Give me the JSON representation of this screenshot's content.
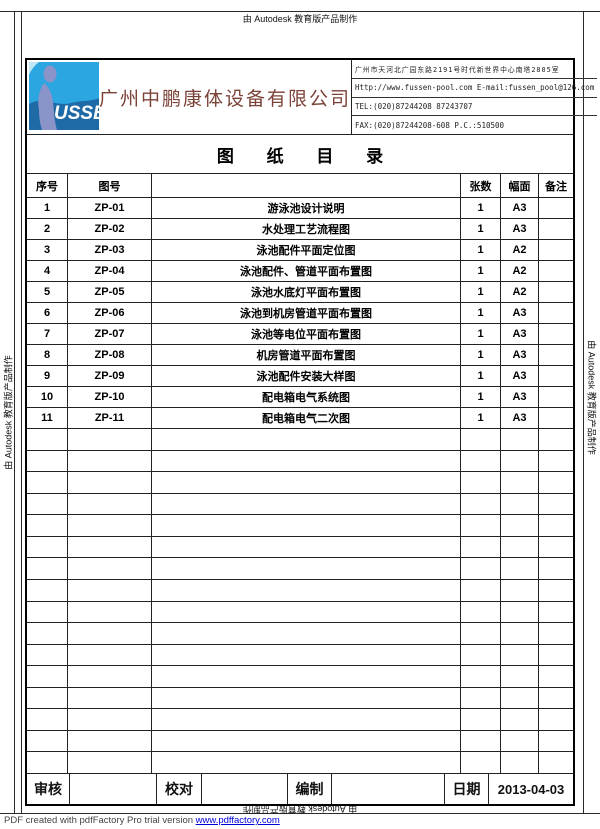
{
  "watermarks": {
    "top": "由 Autodesk 教育版产品制作",
    "left": "由 Autodesk 教育版产品制作",
    "right": "由 Autodesk 教育版产品制作",
    "bottom": "由 Autodesk 教育版产品制作"
  },
  "header": {
    "logo_wordmark": "USSEN",
    "company_name": "广州中鹏康体设备有限公司",
    "contact": {
      "address": "广州市天河北广园东路2191号时代新世界中心南塔2805室",
      "web_email": "Http://www.fussen-pool.com  E-mail:fussen_pool@126.com",
      "tel": "TEL:(020)87244208 87243707",
      "fax": "FAX:(020)87244208-608 P.C.:510500"
    }
  },
  "sheet_title": "图 纸 目 录",
  "table": {
    "headers": {
      "index": "序号",
      "drawing_no": "图号",
      "name": "",
      "sheets": "张数",
      "size": "幅面",
      "remarks": "备注"
    },
    "rows": [
      {
        "index": "1",
        "no": "ZP-01",
        "name": "游泳池设计说明",
        "sheets": "1",
        "size": "A3",
        "remarks": ""
      },
      {
        "index": "2",
        "no": "ZP-02",
        "name": "水处理工艺流程图",
        "sheets": "1",
        "size": "A3",
        "remarks": ""
      },
      {
        "index": "3",
        "no": "ZP-03",
        "name": "泳池配件平面定位图",
        "sheets": "1",
        "size": "A2",
        "remarks": ""
      },
      {
        "index": "4",
        "no": "ZP-04",
        "name": "泳池配件、管道平面布置图",
        "sheets": "1",
        "size": "A2",
        "remarks": ""
      },
      {
        "index": "5",
        "no": "ZP-05",
        "name": "泳池水底灯平面布置图",
        "sheets": "1",
        "size": "A2",
        "remarks": ""
      },
      {
        "index": "6",
        "no": "ZP-06",
        "name": "泳池到机房管道平面布置图",
        "sheets": "1",
        "size": "A3",
        "remarks": ""
      },
      {
        "index": "7",
        "no": "ZP-07",
        "name": "泳池等电位平面布置图",
        "sheets": "1",
        "size": "A3",
        "remarks": ""
      },
      {
        "index": "8",
        "no": "ZP-08",
        "name": "机房管道平面布置图",
        "sheets": "1",
        "size": "A3",
        "remarks": ""
      },
      {
        "index": "9",
        "no": "ZP-09",
        "name": "泳池配件安装大样图",
        "sheets": "1",
        "size": "A3",
        "remarks": ""
      },
      {
        "index": "10",
        "no": "ZP-10",
        "name": "配电箱电气系统图",
        "sheets": "1",
        "size": "A3",
        "remarks": ""
      },
      {
        "index": "11",
        "no": "ZP-11",
        "name": "配电箱电气二次图",
        "sheets": "1",
        "size": "A3",
        "remarks": ""
      }
    ],
    "empty_row_count": 16
  },
  "signature": {
    "review_label": "审核",
    "proofread_label": "校对",
    "compile_label": "编制",
    "date_label": "日期",
    "date_value": "2013-04-03"
  },
  "footer": {
    "text": "PDF created with pdfFactory Pro trial version ",
    "link": "www.pdffactory.com"
  },
  "colors": {
    "logo_top_blue": "#2BA6E0",
    "logo_bottom_blue": "#1E6AA7",
    "logo_figure": "#8A94C8",
    "company_name_red": "#7B4238",
    "link_blue": "#0000DD"
  }
}
